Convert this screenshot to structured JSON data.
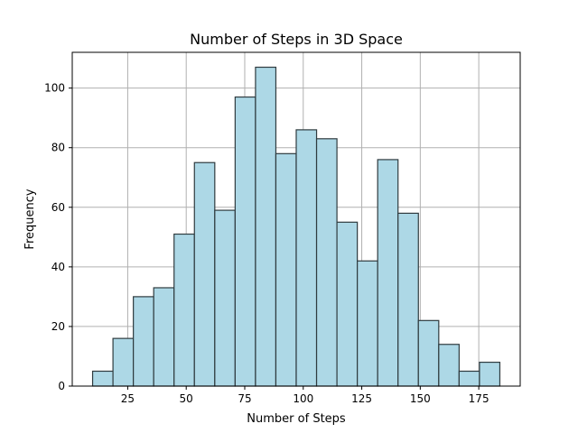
{
  "chart_data": {
    "type": "bar",
    "title": "Number of Steps in 3D Space",
    "xlabel": "Number of Steps",
    "ylabel": "Frequency",
    "xlim": [
      1.3,
      192.7
    ],
    "ylim": [
      0,
      112
    ],
    "xticks": [
      25,
      50,
      75,
      100,
      125,
      150,
      175
    ],
    "yticks": [
      0,
      20,
      40,
      60,
      80,
      100
    ],
    "grid": true,
    "bin_edges": [
      10,
      18.7,
      27.4,
      36.1,
      44.8,
      53.5,
      62.2,
      70.9,
      79.6,
      88.3,
      97,
      105.7,
      114.4,
      123.1,
      131.8,
      140.5,
      149.2,
      157.9,
      166.6,
      175.3,
      184
    ],
    "values": [
      5,
      16,
      30,
      33,
      51,
      75,
      59,
      97,
      107,
      78,
      86,
      83,
      55,
      42,
      76,
      58,
      22,
      14,
      5,
      8
    ],
    "bar_color": "#add8e6",
    "edge_color": "#2f3b3f"
  }
}
